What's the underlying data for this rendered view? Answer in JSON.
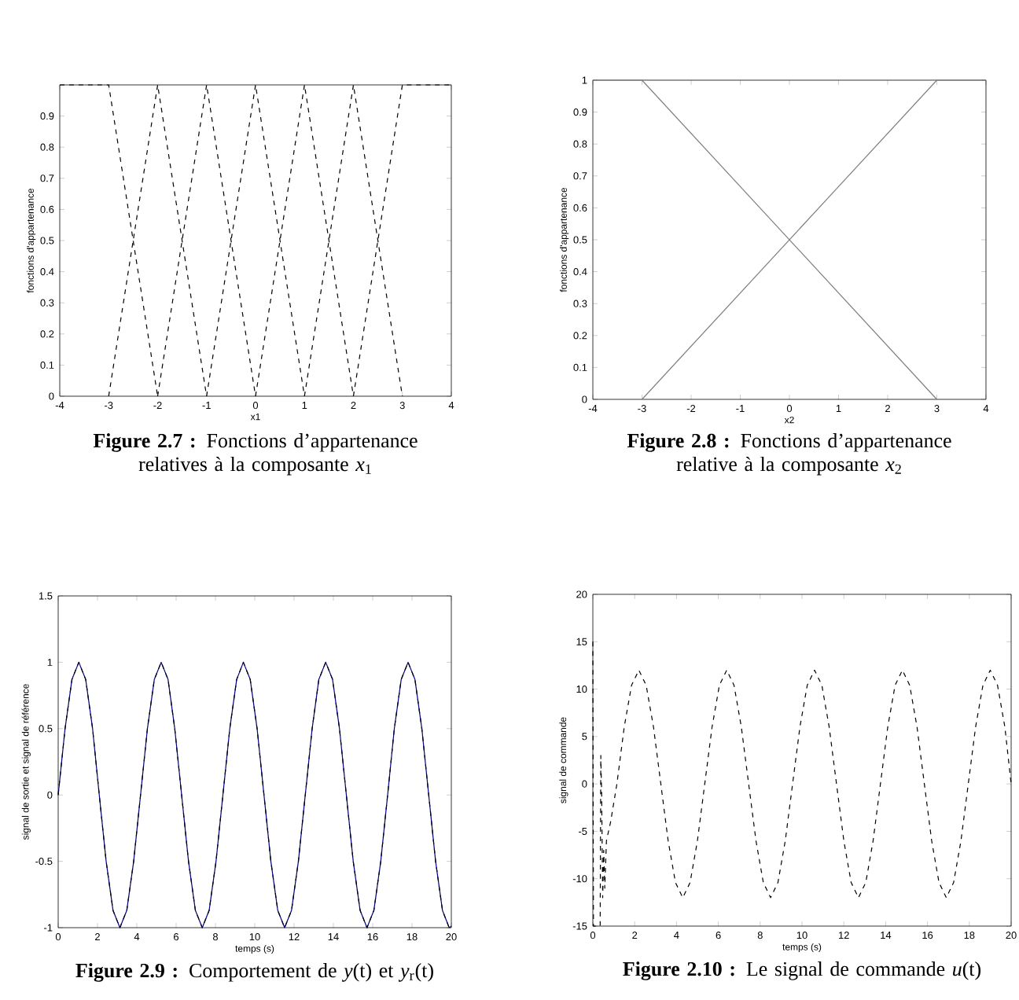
{
  "chart_data": [
    {
      "type": "line",
      "title": "**Figure 2.7 :** Fonctions d’appartenance relatives à la composante *x*$_{1}$",
      "xlabel": "x1",
      "ylabel": "fonctions d'appartenance",
      "xlim": [
        -4,
        4
      ],
      "ylim": [
        0,
        1
      ],
      "xticks": [
        -4,
        -3,
        -2,
        -1,
        0,
        1,
        2,
        3,
        4
      ],
      "yticks": [
        0,
        0.1,
        0.2,
        0.3,
        0.4,
        0.5,
        0.6,
        0.7,
        0.8,
        0.9,
        {
          "value": 1,
          "label": null
        }
      ],
      "series": [
        {
          "color": "#000000",
          "line_style": "dashed",
          "x": [
            -4,
            -3,
            -2
          ],
          "values": [
            1,
            1,
            0
          ]
        },
        {
          "color": "#000000",
          "line_style": "dashed",
          "x": [
            -3,
            -2,
            -1
          ],
          "values": [
            0,
            1,
            0
          ]
        },
        {
          "color": "#000000",
          "line_style": "dashed",
          "x": [
            -2,
            -1,
            0
          ],
          "values": [
            0,
            1,
            0
          ]
        },
        {
          "color": "#000000",
          "line_style": "dashed",
          "x": [
            -1,
            0,
            1
          ],
          "values": [
            0,
            1,
            0
          ]
        },
        {
          "color": "#000000",
          "line_style": "dashed",
          "x": [
            0,
            1,
            2
          ],
          "values": [
            0,
            1,
            0
          ]
        },
        {
          "color": "#000000",
          "line_style": "dashed",
          "x": [
            1,
            2,
            3
          ],
          "values": [
            0,
            1,
            0
          ]
        },
        {
          "color": "#000000",
          "line_style": "dashed",
          "x": [
            2,
            3,
            4
          ],
          "values": [
            0,
            1,
            1
          ]
        }
      ]
    },
    {
      "type": "line",
      "title": "**Figure 2.8 :** Fonctions d’appartenance relative à la composante *x*$_{2}$",
      "xlabel": "x2",
      "ylabel": "fonctions d'appartenance",
      "xlim": [
        -4,
        4
      ],
      "ylim": [
        0,
        1
      ],
      "xticks": [
        -4,
        -3,
        -2,
        -1,
        0,
        1,
        2,
        3,
        4
      ],
      "yticks": [
        0,
        0.1,
        0.2,
        0.3,
        0.4,
        0.5,
        0.6,
        0.7,
        0.8,
        0.9,
        1
      ],
      "series": [
        {
          "color": "#808080",
          "line_style": "solid",
          "x": [
            -4,
            -3,
            3
          ],
          "values": [
            1,
            1,
            0
          ]
        },
        {
          "color": "#808080",
          "line_style": "solid",
          "x": [
            -3,
            3,
            4
          ],
          "values": [
            0,
            1,
            1
          ]
        }
      ]
    },
    {
      "type": "line",
      "title": "**Figure 2.9 :** Comportement de *y*(t) et *y*$_{r}$(t)",
      "xlabel": "temps (s)",
      "ylabel": "signal de sortie et signal de référence",
      "xlim": [
        0,
        20
      ],
      "ylim": [
        -1,
        1.5
      ],
      "xticks": [
        0,
        2,
        4,
        6,
        8,
        10,
        12,
        14,
        16,
        18,
        20
      ],
      "yticks": [
        -1,
        -0.5,
        0,
        0.5,
        1,
        1.5
      ],
      "series": [
        {
          "color": "#00008b",
          "line_style": "solid",
          "x": [
            0,
            0.35,
            0.7,
            1.05,
            1.4,
            1.75,
            2.09,
            2.44,
            2.79,
            3.14,
            3.49,
            3.84,
            4.19,
            4.54,
            4.89,
            5.24,
            5.59,
            5.93,
            6.28,
            6.63,
            6.98,
            7.33,
            7.68,
            8.03,
            8.38,
            8.73,
            9.08,
            9.42,
            9.77,
            10.12,
            10.47,
            10.82,
            11.17,
            11.52,
            11.87,
            12.22,
            12.57,
            12.92,
            13.26,
            13.61,
            13.96,
            14.31,
            14.66,
            15.01,
            15.36,
            15.71,
            16.06,
            16.41,
            16.76,
            17.1,
            17.45,
            17.8,
            18.15,
            18.5,
            18.85,
            19.2,
            19.55,
            19.89,
            20
          ],
          "values": [
            0,
            0.5,
            0.87,
            1,
            0.87,
            0.5,
            0,
            -0.5,
            -0.87,
            -1,
            -0.87,
            -0.5,
            0,
            0.5,
            0.87,
            1,
            0.87,
            0.5,
            0,
            -0.5,
            -0.87,
            -1,
            -0.87,
            -0.5,
            0,
            0.5,
            0.87,
            1,
            0.87,
            0.5,
            0,
            -0.5,
            -0.87,
            -1,
            -0.87,
            -0.5,
            0,
            0.5,
            0.87,
            1,
            0.87,
            0.5,
            0,
            -0.5,
            -0.87,
            -1,
            -0.87,
            -0.5,
            0,
            0.5,
            0.87,
            1,
            0.87,
            0.5,
            0,
            -0.5,
            -0.87,
            -1,
            -0.99
          ]
        },
        {
          "color": "#000000",
          "line_style": "dashed",
          "x": [
            0,
            0.35,
            0.7,
            1.05,
            1.4,
            1.75,
            2.09,
            2.44,
            2.79,
            3.14,
            3.49,
            3.84,
            4.19,
            4.54,
            4.89,
            5.24,
            5.59,
            5.93,
            6.28,
            6.63,
            6.98,
            7.33,
            7.68,
            8.03,
            8.38,
            8.73,
            9.08,
            9.42,
            9.77,
            10.12,
            10.47,
            10.82,
            11.17,
            11.52,
            11.87,
            12.22,
            12.57,
            12.92,
            13.26,
            13.61,
            13.96,
            14.31,
            14.66,
            15.01,
            15.36,
            15.71,
            16.06,
            16.41,
            16.76,
            17.1,
            17.45,
            17.8,
            18.15,
            18.5,
            18.85,
            19.2,
            19.55,
            19.89,
            20
          ],
          "values": [
            0,
            0.5,
            0.87,
            1,
            0.87,
            0.5,
            0,
            -0.5,
            -0.87,
            -1,
            -0.87,
            -0.5,
            0,
            0.5,
            0.87,
            1,
            0.87,
            0.5,
            0,
            -0.5,
            -0.87,
            -1,
            -0.87,
            -0.5,
            0,
            0.5,
            0.87,
            1,
            0.87,
            0.5,
            0,
            -0.5,
            -0.87,
            -1,
            -0.87,
            -0.5,
            0,
            0.5,
            0.87,
            1,
            0.87,
            0.5,
            0,
            -0.5,
            -0.87,
            -1,
            -0.87,
            -0.5,
            0,
            0.5,
            0.87,
            1,
            0.87,
            0.5,
            0,
            -0.5,
            -0.87,
            -1,
            -0.99
          ]
        }
      ]
    },
    {
      "type": "line",
      "title": "**Figure 2.10 :** Le signal de commande *u*(t)",
      "xlabel": "temps (s)",
      "ylabel": "signal de commande",
      "xlim": [
        0,
        20
      ],
      "ylim": [
        -15,
        20
      ],
      "xticks": [
        0,
        2,
        4,
        6,
        8,
        10,
        12,
        14,
        16,
        18,
        20
      ],
      "yticks": [
        -15,
        -10,
        -5,
        0,
        5,
        10,
        15,
        20
      ],
      "series": [
        {
          "color": "#000000",
          "line_style": "dashed",
          "x": [
            0,
            0.03,
            0.35,
            0.38,
            0.42,
            0.47,
            0.52,
            0.57,
            0.65,
            0.85,
            1.15,
            1.5,
            1.85,
            2.2,
            2.55,
            2.9,
            3.25,
            3.6,
            3.95,
            4.3,
            4.65,
            5.0,
            5.35,
            5.7,
            6.05,
            6.4,
            6.75,
            7.1,
            7.45,
            7.8,
            8.15,
            8.5,
            8.85,
            9.2,
            9.55,
            9.9,
            10.25,
            10.6,
            10.95,
            11.3,
            11.65,
            12.0,
            12.35,
            12.7,
            13.05,
            13.4,
            13.75,
            14.1,
            14.45,
            14.8,
            15.15,
            15.5,
            15.85,
            16.2,
            16.55,
            16.9,
            17.25,
            17.6,
            17.95,
            18.3,
            18.65,
            19.0,
            19.35,
            19.7,
            20
          ],
          "values": [
            15,
            -15,
            -15,
            3,
            -1,
            -12,
            -7,
            -11,
            -6,
            -4,
            0,
            6,
            10.4,
            12,
            10.4,
            6,
            0,
            -6,
            -10.4,
            -12,
            -10.4,
            -6,
            0,
            6,
            10.4,
            12,
            10.4,
            6,
            0,
            -6,
            -10.4,
            -12,
            -10.4,
            -6,
            0,
            6,
            10.4,
            12,
            10.4,
            6,
            0,
            -6,
            -10.4,
            -12,
            -10.4,
            -6,
            0,
            6,
            10.4,
            12,
            10.4,
            6,
            0,
            -6,
            -10.4,
            -12,
            -10.4,
            -6,
            0,
            6,
            10.4,
            12,
            10.4,
            6,
            0
          ]
        }
      ]
    }
  ]
}
